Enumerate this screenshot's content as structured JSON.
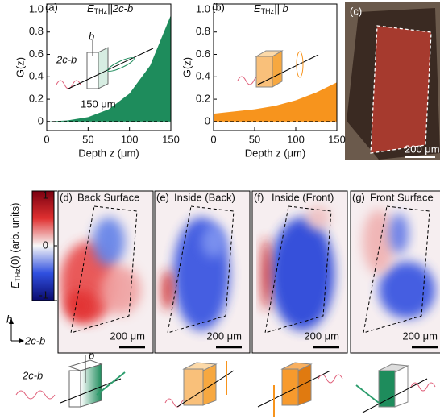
{
  "chart_data": [
    {
      "type": "area",
      "panel": "(a)",
      "title": {
        "symbol": "E",
        "subscript": "THz",
        "text": "||2c-b"
      },
      "x": [
        0,
        25,
        50,
        75,
        100,
        125,
        150
      ],
      "values": [
        0,
        0.01,
        0.04,
        0.11,
        0.25,
        0.5,
        0.95
      ],
      "color": "#1e8c5c",
      "xlabel": "Depth z (μm)",
      "ylabel": "G(z)",
      "xlim": [
        0,
        150
      ],
      "ylim": [
        -0.08,
        1.05
      ],
      "xticks": [
        0,
        50,
        100,
        150
      ],
      "yticks": [
        0,
        0.2,
        0.4,
        0.6,
        0.8,
        {
          "value": 1,
          "label": "1.0"
        }
      ],
      "annotations": [
        "b",
        "2c-b",
        "150 μm"
      ]
    },
    {
      "type": "area",
      "panel": "(b)",
      "title": {
        "symbol": "E",
        "subscript": "THz",
        "text": "|| b"
      },
      "x": [
        0,
        25,
        50,
        75,
        100,
        125,
        150
      ],
      "values": [
        0.07,
        0.09,
        0.11,
        0.14,
        0.19,
        0.26,
        0.35
      ],
      "color": "#f7941d",
      "xlabel": "Depth z (μm)",
      "ylabel": "G(z)",
      "xlim": [
        0,
        150
      ],
      "ylim": [
        -0.08,
        1.05
      ],
      "xticks": [
        0,
        50,
        100,
        150
      ],
      "yticks": [
        0,
        0.2,
        0.4,
        0.6,
        0.8,
        {
          "value": 1,
          "label": "1.0"
        }
      ],
      "annotations": []
    }
  ],
  "photo": {
    "panel": "(c)",
    "scale": "200 μm"
  },
  "colorbar": {
    "symbol": "E",
    "subscript": "THz",
    "text": "(0) (arb. units)",
    "ticks": [
      1,
      0,
      -1
    ],
    "lim": [
      -1,
      1
    ]
  },
  "maps": [
    {
      "panel": "(d)",
      "title": "Back Surface",
      "scale": "200 μm"
    },
    {
      "panel": "(e)",
      "title": "Inside (Back)",
      "scale": "200 μm"
    },
    {
      "panel": "(f)",
      "title": "Inside (Front)",
      "scale": "200 μm"
    },
    {
      "panel": "(g)",
      "title": "Front Surface",
      "scale": "200 μm"
    }
  ],
  "axes_key": {
    "vertical": "b",
    "horizontal": "2c-b"
  },
  "schematic": {
    "labels": [
      "b",
      "2c-b"
    ]
  }
}
